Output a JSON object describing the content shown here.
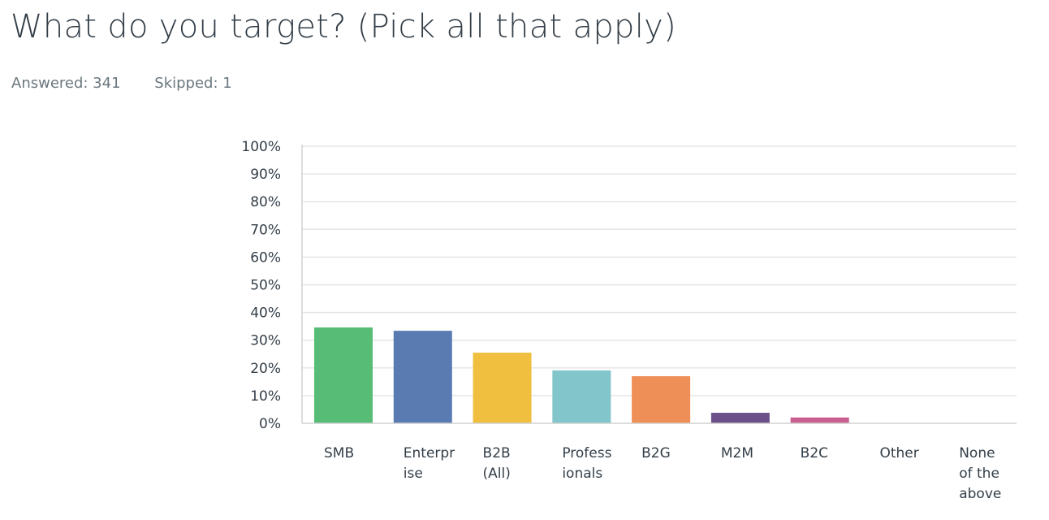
{
  "question": {
    "title": "What do you target? (Pick all that apply)",
    "answered_text": "Answered: 341",
    "skipped_text": "Skipped: 1"
  },
  "chart_data": {
    "type": "bar",
    "categories": [
      "SMB",
      "Enterprise",
      "B2B (All)",
      "Professionals",
      "B2G",
      "M2M",
      "B2C",
      "Other",
      "None of the above"
    ],
    "category_label_lines": [
      [
        "SMB"
      ],
      [
        "Enterpr",
        "ise"
      ],
      [
        "B2B",
        "(All)"
      ],
      [
        "Profess",
        "ionals"
      ],
      [
        "B2G"
      ],
      [
        "M2M"
      ],
      [
        "B2C"
      ],
      [
        "Other"
      ],
      [
        "None",
        "of the",
        "above"
      ]
    ],
    "values": [
      34.6,
      33.4,
      25.5,
      19.1,
      17.0,
      3.8,
      2.1,
      0,
      0
    ],
    "colors": [
      "#57bd76",
      "#5a7bb2",
      "#f0bf3f",
      "#82c5ca",
      "#ef8f58",
      "#6c5089",
      "#c95f8e",
      "#bbbbbb",
      "#bbbbbb"
    ],
    "ylim": [
      0,
      100
    ],
    "yticks": [
      0,
      10,
      20,
      30,
      40,
      50,
      60,
      70,
      80,
      90,
      100
    ],
    "ytick_labels": [
      "0%",
      "10%",
      "20%",
      "30%",
      "40%",
      "50%",
      "60%",
      "70%",
      "80%",
      "90%",
      "100%"
    ],
    "grid": true,
    "gridline_color": "#e6e6e6",
    "axis_color": "#d0d0d0"
  }
}
